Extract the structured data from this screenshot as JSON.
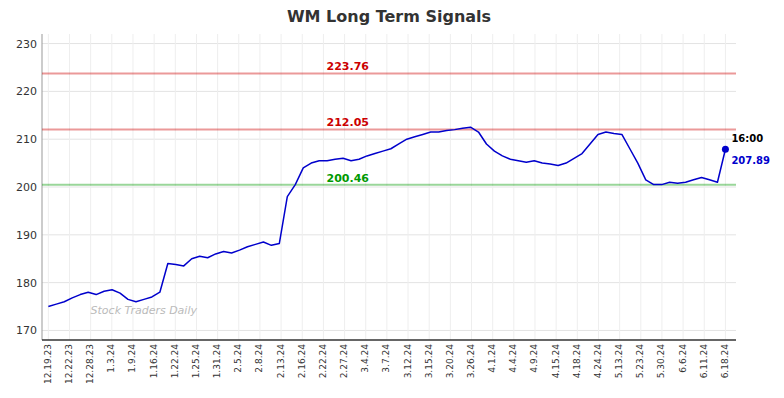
{
  "chart_data": {
    "type": "line",
    "title": "WM Long Term Signals",
    "color": "#0000cc",
    "values": [
      175.0,
      175.5,
      176.0,
      176.8,
      177.5,
      178.0,
      177.5,
      178.2,
      178.5,
      177.8,
      176.5,
      176.0,
      176.5,
      177.0,
      178.0,
      184.0,
      183.8,
      183.5,
      185.0,
      185.5,
      185.2,
      186.0,
      186.5,
      186.2,
      186.8,
      187.5,
      188.0,
      188.5,
      187.8,
      188.2,
      198.0,
      200.5,
      204.0,
      205.0,
      205.5,
      205.5,
      205.8,
      206.0,
      205.5,
      205.8,
      206.5,
      207.0,
      207.5,
      208.0,
      209.0,
      210.0,
      210.5,
      211.0,
      211.5,
      211.5,
      211.8,
      212.0,
      212.3,
      212.5,
      211.5,
      209.0,
      207.5,
      206.5,
      205.8,
      205.5,
      205.2,
      205.5,
      205.0,
      204.8,
      204.5,
      205.0,
      206.0,
      207.0,
      209.0,
      211.0,
      211.5,
      211.2,
      211.0,
      208.0,
      205.0,
      201.5,
      200.5,
      200.5,
      201.0,
      200.8,
      201.0,
      201.5,
      202.0,
      201.5,
      201.0,
      207.89
    ],
    "xlim": [
      -0.796875,
      86.328125
    ],
    "xticks": [
      {
        "value": 0,
        "label": "12.19.23"
      },
      {
        "value": 2.65625,
        "label": "12.22.23"
      },
      {
        "value": 5.3125,
        "label": "12.28.23"
      },
      {
        "value": 7.96875,
        "label": "1.3.24"
      },
      {
        "value": 10.625,
        "label": "1.9.24"
      },
      {
        "value": 13.28125,
        "label": "1.16.24"
      },
      {
        "value": 15.9375,
        "label": "1.22.24"
      },
      {
        "value": 18.59375,
        "label": "1.25.24"
      },
      {
        "value": 21.25,
        "label": "1.31.24"
      },
      {
        "value": 23.90625,
        "label": "2.5.24"
      },
      {
        "value": 26.5625,
        "label": "2.8.24"
      },
      {
        "value": 29.21875,
        "label": "2.13.24"
      },
      {
        "value": 31.875,
        "label": "2.16.24"
      },
      {
        "value": 34.53125,
        "label": "2.22.24"
      },
      {
        "value": 37.1875,
        "label": "2.27.24"
      },
      {
        "value": 39.84375,
        "label": "3.4.24"
      },
      {
        "value": 42.5,
        "label": "3.7.24"
      },
      {
        "value": 45.15625,
        "label": "3.12.24"
      },
      {
        "value": 47.8125,
        "label": "3.15.24"
      },
      {
        "value": 50.46875,
        "label": "3.20.24"
      },
      {
        "value": 53.125,
        "label": "3.26.24"
      },
      {
        "value": 55.78125,
        "label": "4.1.24"
      },
      {
        "value": 58.4375,
        "label": "4.4.24"
      },
      {
        "value": 61.09375,
        "label": "4.9.24"
      },
      {
        "value": 63.75,
        "label": "4.15.24"
      },
      {
        "value": 66.40625,
        "label": "4.18.24"
      },
      {
        "value": 69.0625,
        "label": "4.24.24"
      },
      {
        "value": 71.71875,
        "label": "5.13.24"
      },
      {
        "value": 74.375,
        "label": "5.23.24"
      },
      {
        "value": 77.03125,
        "label": "5.30.24"
      },
      {
        "value": 79.6875,
        "label": "6.6.24"
      },
      {
        "value": 82.34375,
        "label": "6.11.24"
      },
      {
        "value": 85,
        "label": "6.18.24"
      }
    ],
    "ylim": [
      168,
      232
    ],
    "yticks": [
      170,
      180,
      190,
      200,
      210,
      220,
      230
    ],
    "grid": true,
    "reference_lines": [
      {
        "value": 223.76,
        "label": "223.76",
        "color": "#cc0000"
      },
      {
        "value": 212.05,
        "label": "212.05",
        "color": "#cc0000"
      },
      {
        "value": 200.46,
        "label": "200.46",
        "color": "#009900"
      }
    ],
    "annotations": [
      {
        "text": "16:00"
      },
      {
        "text": "207.89"
      }
    ],
    "watermark": "Stock Traders Daily"
  }
}
